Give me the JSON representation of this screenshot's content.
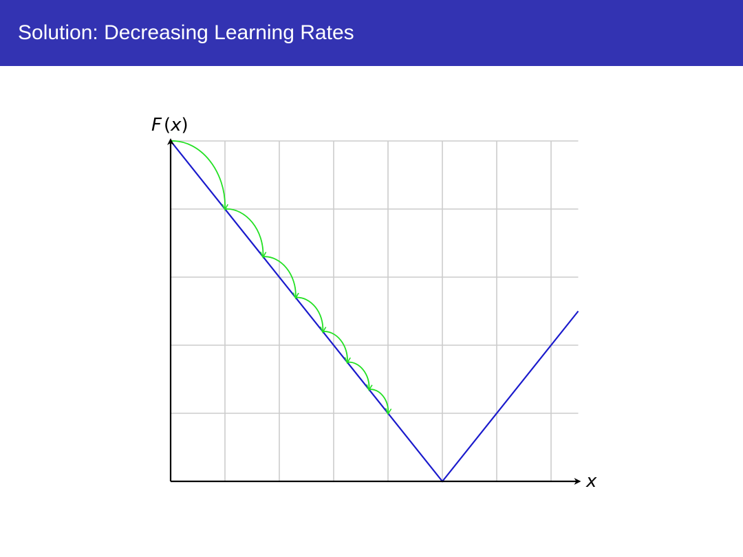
{
  "slide": {
    "title": "Solution: Decreasing Learning Rates"
  },
  "figure": {
    "y_axis_label": {
      "func": "F",
      "open": "(",
      "var": "x",
      "close": ")"
    },
    "x_axis_label": "x",
    "colors": {
      "title_bar": "#3333b2",
      "function_line": "#1a1acc",
      "steps": "#22e022",
      "grid": "#cccccc",
      "axes": "#000000"
    },
    "grid": {
      "cols": 7.5,
      "rows": 5
    },
    "function": {
      "type": "absolute-value",
      "x": [
        0,
        5,
        7.5
      ],
      "y": [
        5,
        0,
        2.5
      ]
    },
    "steps_x": [
      0,
      1,
      1.7,
      2.3,
      2.8,
      3.25,
      3.65,
      4
    ]
  }
}
